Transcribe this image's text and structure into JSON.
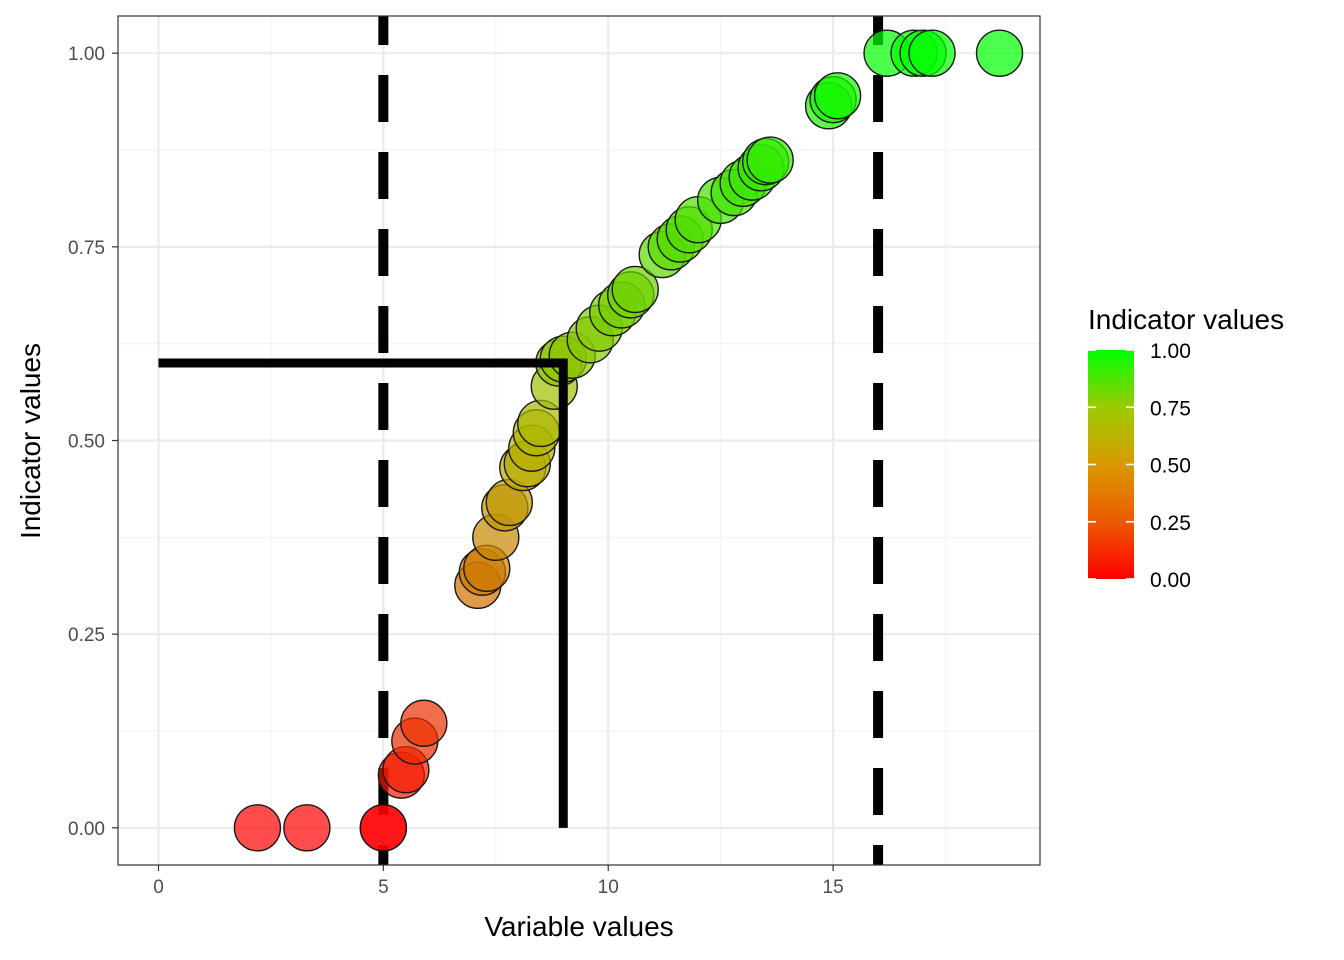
{
  "chart_data": {
    "type": "scatter",
    "xlabel": "Variable values",
    "ylabel": "Indicator values",
    "xlim": [
      -0.9,
      19.6
    ],
    "ylim": [
      -0.048,
      1.048
    ],
    "x_ticks": [
      0,
      5,
      10,
      15
    ],
    "y_ticks": [
      0,
      0.25,
      0.5,
      0.75,
      1.0
    ],
    "x_tick_labels": [
      "0",
      "5",
      "10",
      "15"
    ],
    "y_tick_labels": [
      "0.00",
      "0.25",
      "0.50",
      "0.75",
      "1.00"
    ],
    "grid": true,
    "points": [
      {
        "x": 2.2,
        "y": 0.0
      },
      {
        "x": 3.3,
        "y": 0.0
      },
      {
        "x": 5.0,
        "y": 0.0
      },
      {
        "x": 5.0,
        "y": 0.0
      },
      {
        "x": 5.4,
        "y": 0.068
      },
      {
        "x": 5.5,
        "y": 0.075
      },
      {
        "x": 5.7,
        "y": 0.112
      },
      {
        "x": 5.9,
        "y": 0.135
      },
      {
        "x": 7.1,
        "y": 0.313
      },
      {
        "x": 7.2,
        "y": 0.33
      },
      {
        "x": 7.3,
        "y": 0.335
      },
      {
        "x": 7.5,
        "y": 0.375
      },
      {
        "x": 7.7,
        "y": 0.413
      },
      {
        "x": 7.8,
        "y": 0.42
      },
      {
        "x": 8.1,
        "y": 0.465
      },
      {
        "x": 8.2,
        "y": 0.47
      },
      {
        "x": 8.3,
        "y": 0.49
      },
      {
        "x": 8.4,
        "y": 0.51
      },
      {
        "x": 8.5,
        "y": 0.522
      },
      {
        "x": 8.8,
        "y": 0.57
      },
      {
        "x": 8.9,
        "y": 0.6
      },
      {
        "x": 9.0,
        "y": 0.605
      },
      {
        "x": 9.2,
        "y": 0.61
      },
      {
        "x": 9.6,
        "y": 0.63
      },
      {
        "x": 9.8,
        "y": 0.645
      },
      {
        "x": 10.1,
        "y": 0.665
      },
      {
        "x": 10.3,
        "y": 0.675
      },
      {
        "x": 10.5,
        "y": 0.688
      },
      {
        "x": 10.6,
        "y": 0.695
      },
      {
        "x": 11.2,
        "y": 0.74
      },
      {
        "x": 11.4,
        "y": 0.75
      },
      {
        "x": 11.6,
        "y": 0.76
      },
      {
        "x": 11.8,
        "y": 0.772
      },
      {
        "x": 12.0,
        "y": 0.785
      },
      {
        "x": 12.5,
        "y": 0.81
      },
      {
        "x": 12.8,
        "y": 0.82
      },
      {
        "x": 13.0,
        "y": 0.832
      },
      {
        "x": 13.2,
        "y": 0.84
      },
      {
        "x": 13.4,
        "y": 0.852
      },
      {
        "x": 13.5,
        "y": 0.86
      },
      {
        "x": 13.6,
        "y": 0.862
      },
      {
        "x": 14.9,
        "y": 0.932
      },
      {
        "x": 15.0,
        "y": 0.94
      },
      {
        "x": 15.1,
        "y": 0.945
      },
      {
        "x": 16.2,
        "y": 1.0
      },
      {
        "x": 16.8,
        "y": 1.0
      },
      {
        "x": 17.0,
        "y": 1.0
      },
      {
        "x": 17.2,
        "y": 1.0
      },
      {
        "x": 18.7,
        "y": 1.0
      }
    ],
    "reference_lines": {
      "dashed_vertical_x": [
        5,
        16
      ],
      "threshold_polyline": [
        [
          0,
          0.6
        ],
        [
          9,
          0.6
        ],
        [
          9,
          0.0
        ]
      ]
    },
    "color_scale": {
      "low": "#ff0000",
      "mid": "#b5b500",
      "high": "#00ff00",
      "range": [
        0,
        1
      ]
    },
    "legend": {
      "title": "Indicator values",
      "tick_labels": [
        "1.00",
        "0.75",
        "0.50",
        "0.25",
        "0.00"
      ],
      "tick_values": [
        1.0,
        0.75,
        0.5,
        0.25,
        0.0
      ],
      "placement": "right"
    },
    "point_opacity": 0.7
  }
}
